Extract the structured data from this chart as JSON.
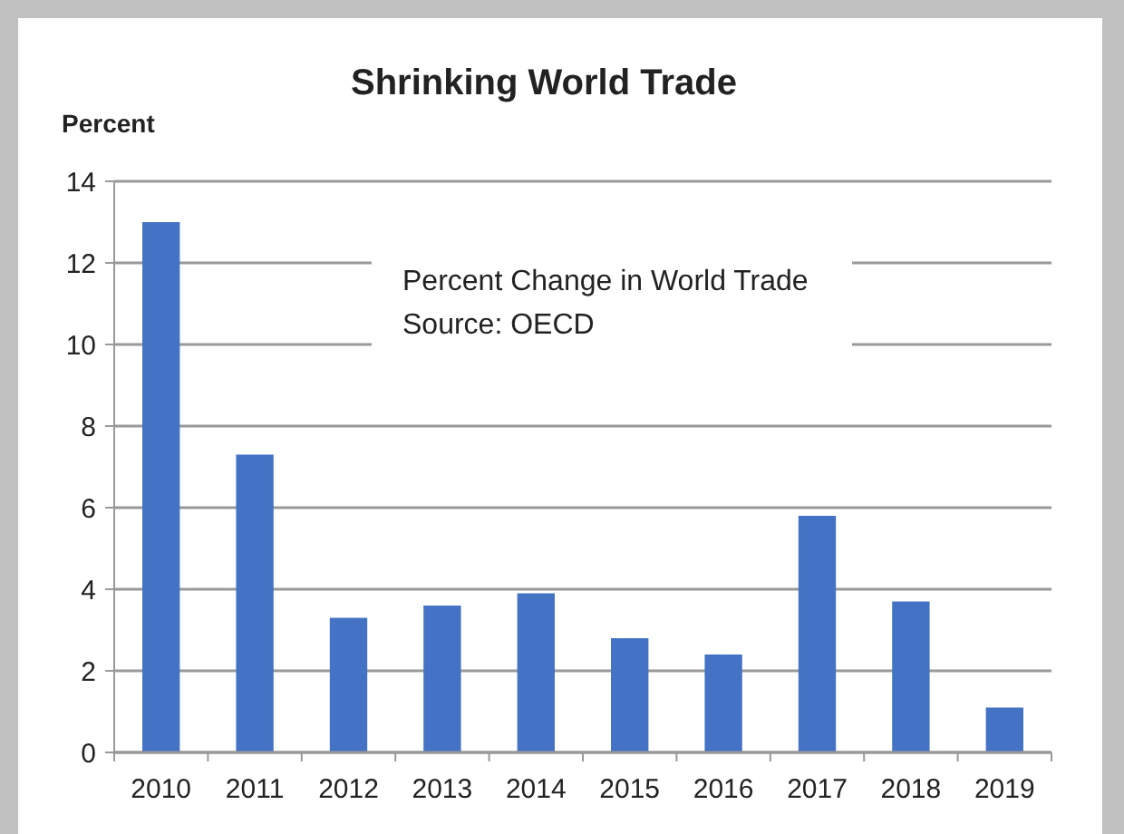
{
  "chart_data": {
    "type": "bar",
    "title": "Shrinking World Trade",
    "ylabel": "Percent",
    "categories": [
      "2010",
      "2011",
      "2012",
      "2013",
      "2014",
      "2015",
      "2016",
      "2017",
      "2018",
      "2019"
    ],
    "values": [
      13.0,
      7.3,
      3.3,
      3.6,
      3.9,
      2.8,
      2.4,
      5.8,
      3.7,
      1.1
    ],
    "color": "#4472c4",
    "ylim": [
      0,
      14
    ],
    "yticks": [
      0,
      2,
      4,
      6,
      8,
      10,
      12,
      14
    ],
    "grid": "y",
    "annotations": [
      "Percent Change in World Trade",
      "Source: OECD"
    ]
  }
}
